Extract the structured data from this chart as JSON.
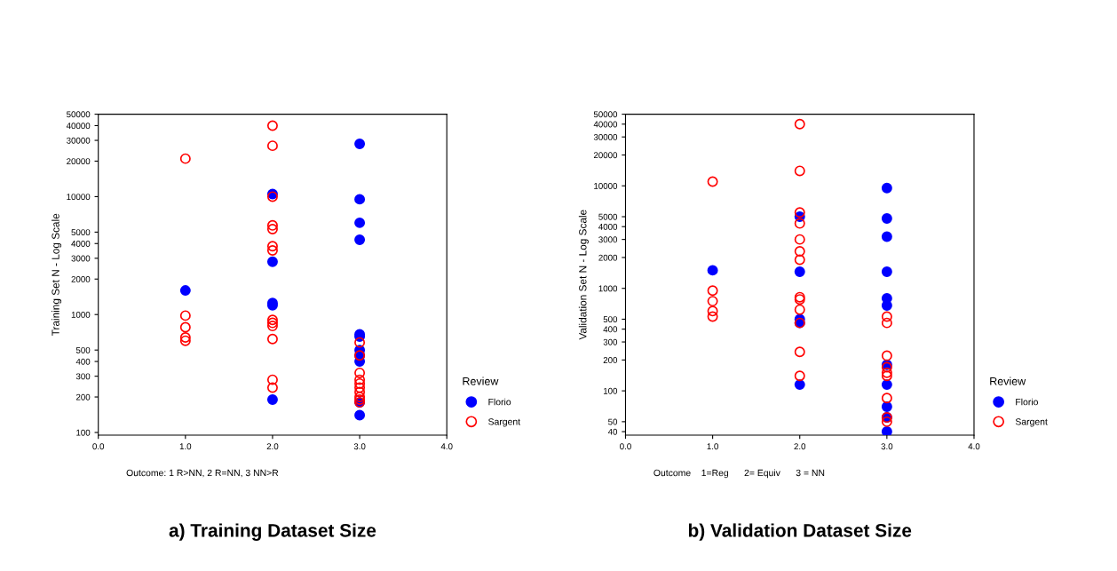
{
  "chart_data": [
    {
      "type": "scatter",
      "title": "a) Training Dataset Size",
      "ylabel": "Training Set N - Log Scale",
      "legend_title": "Review",
      "legend": "right",
      "log": "y",
      "grid": false,
      "marker": "circle",
      "xlim": [
        0,
        4
      ],
      "xticks": [
        {
          "value": 0,
          "label": "0.0"
        },
        {
          "value": 1,
          "label": "1.0"
        },
        {
          "value": 2,
          "label": "2.0"
        },
        {
          "value": 3,
          "label": "3.0"
        },
        {
          "value": 4,
          "label": "4.0"
        }
      ],
      "ylim": [
        95,
        50000
      ],
      "yticks": [
        100,
        200,
        300,
        400,
        500,
        1000,
        2000,
        3000,
        4000,
        5000,
        10000,
        20000,
        30000,
        40000,
        50000
      ],
      "annotations": [
        "Outcome: 1 R>NN, 2 R=NN, 3 NN>R"
      ],
      "series": [
        {
          "name": "Florio",
          "color": "#0000ff",
          "x": [
            1,
            2,
            2,
            2,
            2,
            2,
            3,
            3,
            3,
            3,
            3,
            3,
            3,
            3,
            3,
            3,
            3
          ],
          "values": [
            1600,
            10500,
            2800,
            1250,
            1200,
            190,
            28000,
            9500,
            6000,
            4300,
            680,
            650,
            500,
            450,
            400,
            180,
            140
          ]
        },
        {
          "name": "Sargent",
          "color": "#ff0000",
          "x": [
            1,
            1,
            1,
            1,
            1,
            2,
            2,
            2,
            2,
            2,
            2,
            2,
            2,
            2,
            2,
            2,
            2,
            2,
            3,
            3,
            3,
            3,
            3,
            3,
            3,
            3,
            3,
            3
          ],
          "values": [
            21000,
            980,
            780,
            640,
            600,
            40000,
            27000,
            10000,
            5700,
            5300,
            3800,
            3500,
            900,
            850,
            800,
            620,
            280,
            240,
            580,
            450,
            320,
            280,
            260,
            240,
            220,
            200,
            190,
            180
          ]
        }
      ]
    },
    {
      "type": "scatter",
      "title": "b) Validation Dataset Size",
      "ylabel": "Validation Set N - Log Scale",
      "legend_title": "Review",
      "legend": "right",
      "log": "y",
      "grid": false,
      "marker": "circle",
      "xlim": [
        0,
        4
      ],
      "xticks": [
        {
          "value": 0,
          "label": "0.0"
        },
        {
          "value": 1,
          "label": "1.0"
        },
        {
          "value": 2,
          "label": "2.0"
        },
        {
          "value": 3,
          "label": "3.0"
        },
        {
          "value": 4,
          "label": "4.0"
        }
      ],
      "ylim": [
        37,
        50000
      ],
      "yticks": [
        40,
        50,
        100,
        200,
        300,
        400,
        500,
        1000,
        2000,
        3000,
        4000,
        5000,
        10000,
        20000,
        30000,
        40000,
        50000
      ],
      "annotations": [
        "Outcome    1=Reg      2= Equiv      3 = NN"
      ],
      "series": [
        {
          "name": "Florio",
          "color": "#0000ff",
          "x": [
            1,
            2,
            2,
            2,
            2,
            2,
            3,
            3,
            3,
            3,
            3,
            3,
            3,
            3,
            3,
            3,
            3
          ],
          "values": [
            1500,
            5000,
            1450,
            500,
            460,
            115,
            9500,
            4800,
            3200,
            1450,
            800,
            680,
            180,
            115,
            70,
            55,
            40
          ]
        },
        {
          "name": "Sargent",
          "color": "#ff0000",
          "x": [
            1,
            1,
            1,
            1,
            1,
            2,
            2,
            2,
            2,
            2,
            2,
            2,
            2,
            2,
            2,
            2,
            2,
            2,
            3,
            3,
            3,
            3,
            3,
            3,
            3,
            3,
            3
          ],
          "values": [
            11000,
            950,
            750,
            600,
            530,
            40000,
            14000,
            5500,
            4300,
            3000,
            2300,
            1900,
            820,
            780,
            620,
            460,
            240,
            140,
            530,
            460,
            220,
            170,
            150,
            140,
            85,
            55,
            50
          ]
        }
      ]
    }
  ]
}
